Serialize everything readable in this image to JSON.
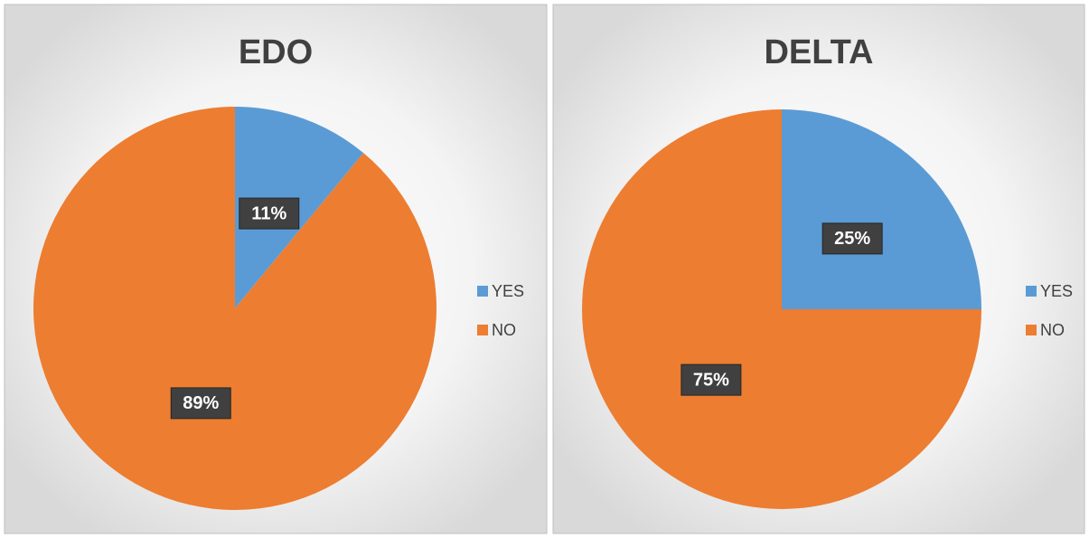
{
  "chart_data": [
    {
      "type": "pie",
      "title": "EDO",
      "categories": [
        "YES",
        "NO"
      ],
      "values": [
        11,
        89
      ],
      "value_labels": [
        "11%",
        "89%"
      ],
      "colors": [
        "#5b9bd5",
        "#ed7d31"
      ],
      "legend": "right"
    },
    {
      "type": "pie",
      "title": "DELTA",
      "categories": [
        "YES",
        "NO"
      ],
      "values": [
        25,
        75
      ],
      "value_labels": [
        "25%",
        "75%"
      ],
      "colors": [
        "#5b9bd5",
        "#ed7d31"
      ],
      "legend": "right"
    }
  ]
}
